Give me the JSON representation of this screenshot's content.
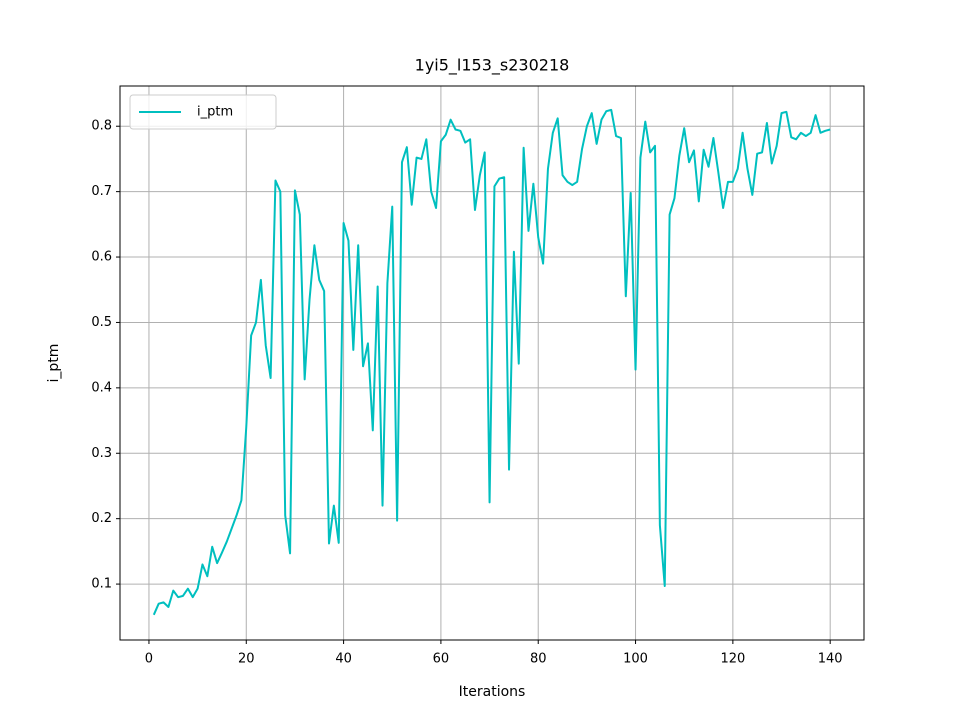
{
  "chart_data": {
    "type": "line",
    "title": "1yi5_l153_s230218",
    "xlabel": "Iterations",
    "ylabel": "i_ptm",
    "x": [
      1,
      2,
      3,
      4,
      5,
      6,
      7,
      8,
      9,
      10,
      11,
      12,
      13,
      14,
      15,
      16,
      17,
      18,
      19,
      20,
      21,
      22,
      23,
      24,
      25,
      26,
      27,
      28,
      29,
      30,
      31,
      32,
      33,
      34,
      35,
      36,
      37,
      38,
      39,
      40,
      41,
      42,
      43,
      44,
      45,
      46,
      47,
      48,
      49,
      50,
      51,
      52,
      53,
      54,
      55,
      56,
      57,
      58,
      59,
      60,
      61,
      62,
      63,
      64,
      65,
      66,
      67,
      68,
      69,
      70,
      71,
      72,
      73,
      74,
      75,
      76,
      77,
      78,
      79,
      80,
      81,
      82,
      83,
      84,
      85,
      86,
      87,
      88,
      89,
      90,
      91,
      92,
      93,
      94,
      95,
      96,
      97,
      98,
      99,
      100,
      101,
      102,
      103,
      104,
      105,
      106,
      107,
      108,
      109,
      110,
      111,
      112,
      113,
      114,
      115,
      116,
      117,
      118,
      119,
      120,
      121,
      122,
      123,
      124,
      125,
      126,
      127,
      128,
      129,
      130,
      131,
      132,
      133,
      134,
      135,
      136,
      137,
      138,
      139,
      140
    ],
    "series": [
      {
        "name": "i_ptm",
        "color": "#00bfbf",
        "values": [
          0.053,
          0.07,
          0.072,
          0.065,
          0.09,
          0.08,
          0.082,
          0.093,
          0.08,
          0.093,
          0.13,
          0.112,
          0.157,
          0.132,
          0.148,
          0.165,
          0.185,
          0.205,
          0.228,
          0.34,
          0.48,
          0.5,
          0.565,
          0.465,
          0.415,
          0.717,
          0.7,
          0.205,
          0.147,
          0.702,
          0.665,
          0.413,
          0.535,
          0.618,
          0.565,
          0.548,
          0.162,
          0.22,
          0.163,
          0.652,
          0.625,
          0.458,
          0.618,
          0.433,
          0.468,
          0.335,
          0.555,
          0.22,
          0.56,
          0.677,
          0.197,
          0.745,
          0.768,
          0.68,
          0.752,
          0.75,
          0.78,
          0.7,
          0.675,
          0.777,
          0.787,
          0.81,
          0.795,
          0.793,
          0.775,
          0.78,
          0.672,
          0.725,
          0.76,
          0.225,
          0.708,
          0.72,
          0.722,
          0.275,
          0.608,
          0.437,
          0.767,
          0.64,
          0.712,
          0.63,
          0.59,
          0.735,
          0.79,
          0.812,
          0.725,
          0.715,
          0.71,
          0.715,
          0.765,
          0.8,
          0.82,
          0.773,
          0.81,
          0.823,
          0.825,
          0.785,
          0.782,
          0.54,
          0.698,
          0.428,
          0.752,
          0.807,
          0.76,
          0.77,
          0.19,
          0.097,
          0.665,
          0.69,
          0.755,
          0.797,
          0.745,
          0.763,
          0.685,
          0.764,
          0.738,
          0.782,
          0.73,
          0.675,
          0.715,
          0.715,
          0.735,
          0.79,
          0.735,
          0.695,
          0.758,
          0.76,
          0.805,
          0.743,
          0.77,
          0.82,
          0.822,
          0.783,
          0.78,
          0.79,
          0.785,
          0.79,
          0.817,
          0.79,
          0.793,
          0.795
        ]
      }
    ],
    "xlim": [
      -5.95,
      146.95
    ],
    "xticks": [
      0,
      20,
      40,
      60,
      80,
      100,
      120,
      140
    ],
    "ylim": [
      0.0145,
      0.8615
    ],
    "yticks": [
      0.1,
      0.2,
      0.3,
      0.4,
      0.5,
      0.6,
      0.7,
      0.8
    ],
    "grid": true,
    "legend": "upper-left"
  }
}
